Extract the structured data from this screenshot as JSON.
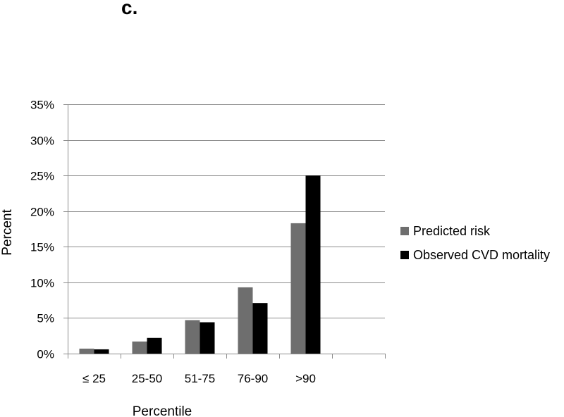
{
  "chart_data": {
    "type": "bar",
    "panel_label": "c.",
    "categories": [
      "≤ 25",
      "25-50",
      "51-75",
      "76-90",
      ">90"
    ],
    "series": [
      {
        "name": "Predicted risk",
        "color": "#6e6e6e",
        "values": [
          0.7,
          1.7,
          4.7,
          9.3,
          18.3
        ]
      },
      {
        "name": "Observed CVD mortality",
        "color": "#000000",
        "values": [
          0.6,
          2.2,
          4.4,
          7.1,
          25.0
        ]
      }
    ],
    "xlabel": "Percentile",
    "ylabel": "Percent",
    "ylim": [
      0,
      35
    ],
    "yticks": [
      0,
      5,
      10,
      15,
      20,
      25,
      30,
      35
    ],
    "ytick_labels": [
      "0%",
      "5%",
      "10%",
      "15%",
      "20%",
      "25%",
      "30%",
      "35%"
    ],
    "empty_trailing_category_slots": 1,
    "grid": true,
    "legend_position": "right"
  }
}
